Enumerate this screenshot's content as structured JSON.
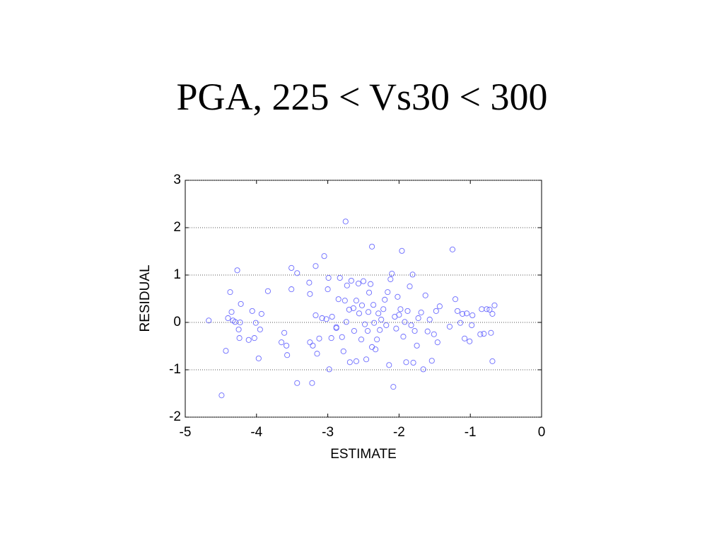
{
  "chart_data": {
    "type": "scatter",
    "title": "PGA, 225 < Vs30 < 300",
    "x_label": "ESTIMATE",
    "y_label": "RESIDUAL",
    "color": "#6b6bff",
    "grid": true,
    "xlim": [
      -5,
      0
    ],
    "xticks": [
      -5,
      -4,
      -3,
      -2,
      -1,
      0
    ],
    "ylim": [
      -2,
      3
    ],
    "yticks": [
      -2,
      -1,
      0,
      1,
      2,
      3
    ],
    "x": [
      -4.67,
      -4.49,
      -4.43,
      -4.37,
      -4.4,
      -4.35,
      -4.33,
      -4.3,
      -4.27,
      -4.25,
      -4.23,
      -4.22,
      -4.24,
      -4.11,
      -4.06,
      -4.03,
      -4.01,
      -3.97,
      -3.95,
      -3.93,
      -3.84,
      -3.65,
      -3.61,
      -3.58,
      -3.57,
      -3.51,
      -3.51,
      -3.43,
      -3.43,
      -3.25,
      -3.26,
      -3.25,
      -3.22,
      -3.21,
      -3.17,
      -3.17,
      -3.15,
      -3.12,
      -3.08,
      -3.05,
      -3.02,
      -3.0,
      -2.99,
      -2.98,
      -2.94,
      -2.95,
      -2.88,
      -2.85,
      -2.83,
      -2.8,
      -2.78,
      -2.75,
      -2.76,
      -2.74,
      -2.73,
      -2.7,
      -2.69,
      -2.67,
      -2.64,
      -2.63,
      -2.6,
      -2.6,
      -2.57,
      -2.56,
      -2.53,
      -2.52,
      -2.5,
      -2.48,
      -2.46,
      -2.44,
      -2.43,
      -2.42,
      -2.4,
      -2.38,
      -2.38,
      -2.36,
      -2.35,
      -2.33,
      -2.31,
      -2.29,
      -2.27,
      -2.25,
      -2.22,
      -2.2,
      -2.18,
      -2.16,
      -2.14,
      -2.12,
      -2.1,
      -2.08,
      -2.06,
      -2.04,
      -2.02,
      -2.0,
      -1.98,
      -1.96,
      -1.94,
      -1.92,
      -1.9,
      -1.88,
      -1.85,
      -1.83,
      -1.81,
      -1.8,
      -1.78,
      -1.75,
      -1.73,
      -1.69,
      -1.66,
      -1.63,
      -1.6,
      -1.57,
      -1.54,
      -1.51,
      -1.48,
      -1.46,
      -1.43,
      -1.29,
      -1.25,
      -1.21,
      -1.18,
      -1.14,
      -1.11,
      -1.08,
      -1.05,
      -1.01,
      -0.98,
      -0.97,
      -0.86,
      -0.84,
      -0.81,
      -0.77,
      -0.73,
      -0.71,
      -0.69,
      -0.69,
      -0.66,
      -2.88
    ],
    "values": [
      0.04,
      -1.54,
      -0.6,
      0.64,
      0.09,
      0.22,
      0.04,
      0.01,
      1.1,
      -0.15,
      0.0,
      0.39,
      -0.33,
      -0.37,
      0.24,
      -0.33,
      -0.01,
      -0.76,
      -0.15,
      0.18,
      0.66,
      -0.42,
      -0.22,
      -0.49,
      -0.69,
      0.7,
      1.15,
      1.04,
      -1.28,
      -0.42,
      0.84,
      0.6,
      -1.28,
      -0.49,
      1.19,
      0.15,
      -0.66,
      -0.34,
      0.09,
      1.4,
      0.07,
      0.7,
      0.94,
      -0.99,
      0.12,
      -0.33,
      -0.12,
      0.49,
      0.94,
      -0.31,
      -0.61,
      2.13,
      0.46,
      0.01,
      0.78,
      0.27,
      -0.84,
      0.88,
      0.3,
      -0.18,
      -0.82,
      0.46,
      0.82,
      0.19,
      -0.36,
      0.36,
      0.87,
      -0.04,
      -0.78,
      -0.18,
      0.22,
      0.63,
      0.81,
      1.6,
      -0.52,
      0.37,
      -0.01,
      -0.57,
      -0.36,
      0.19,
      -0.16,
      0.06,
      0.28,
      0.48,
      -0.06,
      0.64,
      -0.9,
      0.91,
      1.03,
      -1.36,
      0.12,
      -0.13,
      0.54,
      0.16,
      0.28,
      1.51,
      -0.3,
      0.01,
      -0.84,
      0.24,
      0.76,
      -0.06,
      1.01,
      -0.85,
      -0.18,
      -0.49,
      0.09,
      0.21,
      -0.99,
      0.57,
      -0.19,
      0.06,
      -0.81,
      -0.25,
      0.24,
      -0.42,
      0.34,
      -0.09,
      1.54,
      0.49,
      0.24,
      -0.01,
      0.18,
      -0.34,
      0.19,
      -0.4,
      -0.06,
      0.15,
      -0.25,
      0.28,
      -0.24,
      0.28,
      0.27,
      -0.22,
      -0.82,
      0.18,
      0.36,
      -0.1
    ]
  }
}
